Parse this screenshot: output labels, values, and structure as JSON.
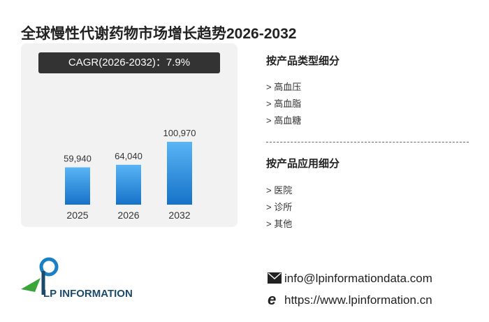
{
  "title": "全球慢性代谢药物市场增长趋势2026-2032",
  "chart_data": {
    "type": "bar",
    "subtitle": "CAGR(2026-2032)：7.9%",
    "categories": [
      "2025",
      "2026",
      "2032"
    ],
    "values": [
      59940,
      64040,
      100970
    ],
    "value_labels": [
      "59,940",
      "64,040",
      "100,970"
    ],
    "color": "#2b8de0"
  },
  "segments": [
    {
      "heading": "按产品类型细分",
      "items": [
        "> 高血压",
        "> 高血脂",
        "> 高血糖"
      ]
    },
    {
      "heading": "按产品应用细分",
      "items": [
        "> 医院",
        "> 诊所",
        "> 其他"
      ]
    }
  ],
  "contact": {
    "email": "info@lpinformationdata.com",
    "website": "https://www.lpinformation.cn"
  },
  "logo": "LP INFORMATION"
}
